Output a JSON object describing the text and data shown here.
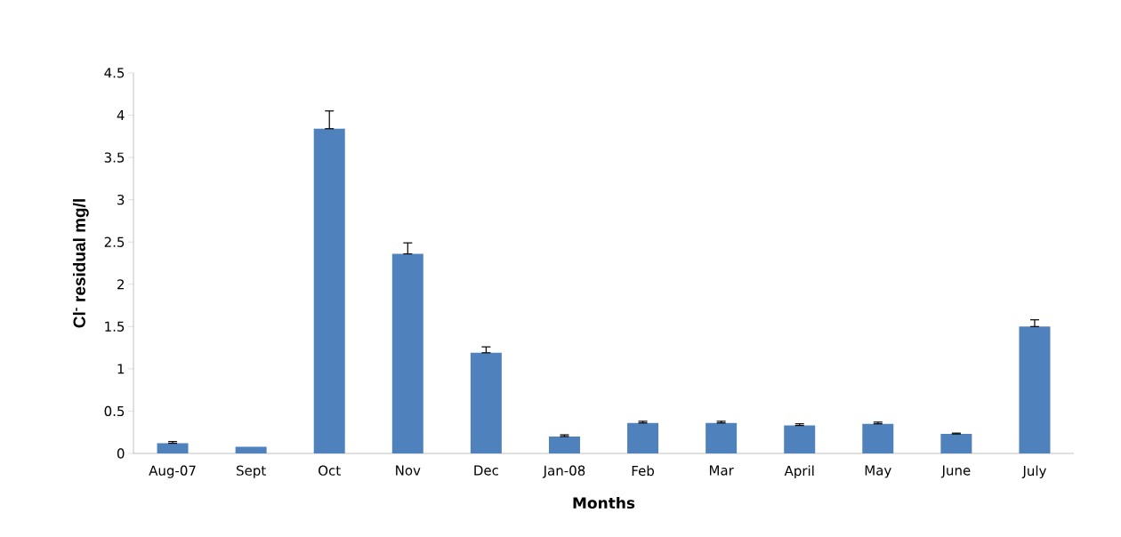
{
  "chart_data": {
    "type": "bar",
    "xlabel": "Months",
    "ylabel": "Cl$^{-}$ residual mg/l",
    "categories": [
      "Aug-07",
      "Sept",
      "Oct",
      "Nov",
      "Dec",
      "Jan-08",
      "Feb",
      "Mar",
      "April",
      "May",
      "June",
      "July"
    ],
    "values": [
      0.12,
      0.08,
      3.84,
      2.36,
      1.19,
      0.2,
      0.36,
      0.36,
      0.33,
      0.35,
      0.23,
      1.5
    ],
    "errors": [
      [
        0.12,
        0.14
      ],
      null,
      [
        3.84,
        4.05
      ],
      [
        2.36,
        2.49
      ],
      [
        1.19,
        1.26
      ],
      [
        0.2,
        0.22
      ],
      [
        0.36,
        0.38
      ],
      [
        0.36,
        0.38
      ],
      [
        0.33,
        0.35
      ],
      [
        0.35,
        0.37
      ],
      [
        0.23,
        0.24
      ],
      [
        1.5,
        1.58
      ]
    ],
    "color": "#4f81bd",
    "ylim": [
      0,
      4.5
    ],
    "yticks": [
      0,
      0.5,
      1,
      1.5,
      2,
      2.5,
      3,
      3.5,
      4,
      4.5
    ],
    "grid": false
  }
}
